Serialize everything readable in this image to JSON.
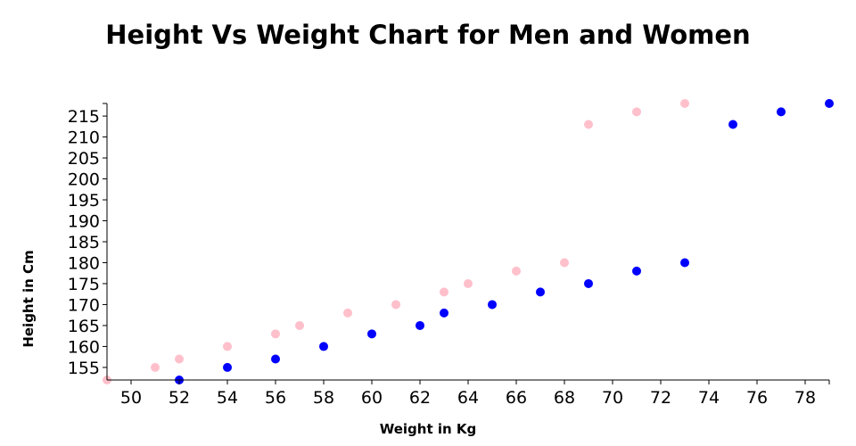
{
  "chart_data": {
    "type": "scatter",
    "title": "Height Vs Weight Chart for Men and Women",
    "xlabel": "Weight in Kg",
    "ylabel": "Height in Cm",
    "xlim": [
      49,
      79
    ],
    "ylim": [
      152,
      218
    ],
    "x_ticks": [
      50,
      52,
      54,
      56,
      58,
      60,
      62,
      64,
      66,
      68,
      70,
      72,
      74,
      76,
      78
    ],
    "y_ticks": [
      155,
      160,
      165,
      170,
      175,
      180,
      185,
      190,
      195,
      200,
      205,
      210,
      215
    ],
    "grid": false,
    "legend": false,
    "series": [
      {
        "color": "#0000ff",
        "points": [
          {
            "x": 52,
            "y": 152
          },
          {
            "x": 54,
            "y": 155
          },
          {
            "x": 56,
            "y": 157
          },
          {
            "x": 58,
            "y": 160
          },
          {
            "x": 60,
            "y": 163
          },
          {
            "x": 62,
            "y": 165
          },
          {
            "x": 63,
            "y": 168
          },
          {
            "x": 65,
            "y": 170
          },
          {
            "x": 67,
            "y": 173
          },
          {
            "x": 69,
            "y": 175
          },
          {
            "x": 71,
            "y": 178
          },
          {
            "x": 73,
            "y": 180
          },
          {
            "x": 75,
            "y": 213
          },
          {
            "x": 77,
            "y": 216
          },
          {
            "x": 79,
            "y": 218
          }
        ]
      },
      {
        "color": "#ffc0cb",
        "points": [
          {
            "x": 49,
            "y": 152
          },
          {
            "x": 51,
            "y": 155
          },
          {
            "x": 52,
            "y": 157
          },
          {
            "x": 54,
            "y": 160
          },
          {
            "x": 56,
            "y": 163
          },
          {
            "x": 57,
            "y": 165
          },
          {
            "x": 59,
            "y": 168
          },
          {
            "x": 61,
            "y": 170
          },
          {
            "x": 63,
            "y": 173
          },
          {
            "x": 64,
            "y": 175
          },
          {
            "x": 66,
            "y": 178
          },
          {
            "x": 68,
            "y": 180
          },
          {
            "x": 69,
            "y": 213
          },
          {
            "x": 71,
            "y": 216
          },
          {
            "x": 73,
            "y": 218
          }
        ]
      }
    ]
  }
}
